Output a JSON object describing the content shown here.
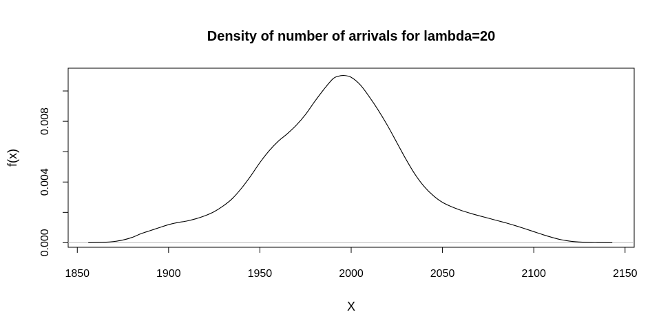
{
  "chart_data": {
    "type": "line",
    "title": "Density of number of arrivals for lambda=20",
    "xlabel": "X",
    "ylabel": "f(x)",
    "xlim": [
      1845,
      2155
    ],
    "ylim": [
      -0.0003,
      0.0115
    ],
    "xticks": [
      1850,
      1900,
      1950,
      2000,
      2050,
      2100,
      2150
    ],
    "yticks": [
      0,
      0.002,
      0.004,
      0.006,
      0.008,
      0.01
    ],
    "ytick_labels": [
      "0.000",
      "",
      "0.004",
      "",
      "0.008",
      ""
    ],
    "xtick_labels": [
      "1850",
      "1900",
      "1950",
      "2000",
      "2050",
      "2100",
      "2150"
    ],
    "baseline": 0,
    "baseline_color": "#bebebe",
    "line_color": "#000000",
    "grid": false,
    "series": [
      {
        "x": [
          1856,
          1865,
          1870,
          1875,
          1880,
          1885,
          1890,
          1895,
          1900,
          1905,
          1910,
          1915,
          1920,
          1925,
          1930,
          1935,
          1940,
          1945,
          1950,
          1955,
          1960,
          1965,
          1970,
          1975,
          1980,
          1985,
          1990,
          1993,
          1996,
          2000,
          2005,
          2010,
          2015,
          2020,
          2025,
          2030,
          2035,
          2040,
          2045,
          2050,
          2055,
          2060,
          2065,
          2070,
          2075,
          2080,
          2085,
          2090,
          2095,
          2100,
          2105,
          2110,
          2115,
          2120,
          2125,
          2130,
          2135,
          2143
        ],
        "y": [
          0.0,
          3e-05,
          8e-05,
          0.00018,
          0.00035,
          0.0006,
          0.0008,
          0.001,
          0.00119,
          0.00133,
          0.00143,
          0.00158,
          0.00178,
          0.00205,
          0.00243,
          0.00292,
          0.0036,
          0.0044,
          0.00528,
          0.00605,
          0.00668,
          0.00718,
          0.00775,
          0.00845,
          0.0093,
          0.0101,
          0.0108,
          0.01097,
          0.01102,
          0.0109,
          0.0104,
          0.0096,
          0.0087,
          0.0077,
          0.0066,
          0.0055,
          0.0045,
          0.0037,
          0.0031,
          0.00266,
          0.00237,
          0.00214,
          0.00195,
          0.00178,
          0.00162,
          0.00146,
          0.0013,
          0.00112,
          0.00093,
          0.00073,
          0.00053,
          0.00035,
          0.0002,
          0.0001,
          5e-05,
          2e-05,
          1e-05,
          0.0
        ]
      }
    ]
  }
}
